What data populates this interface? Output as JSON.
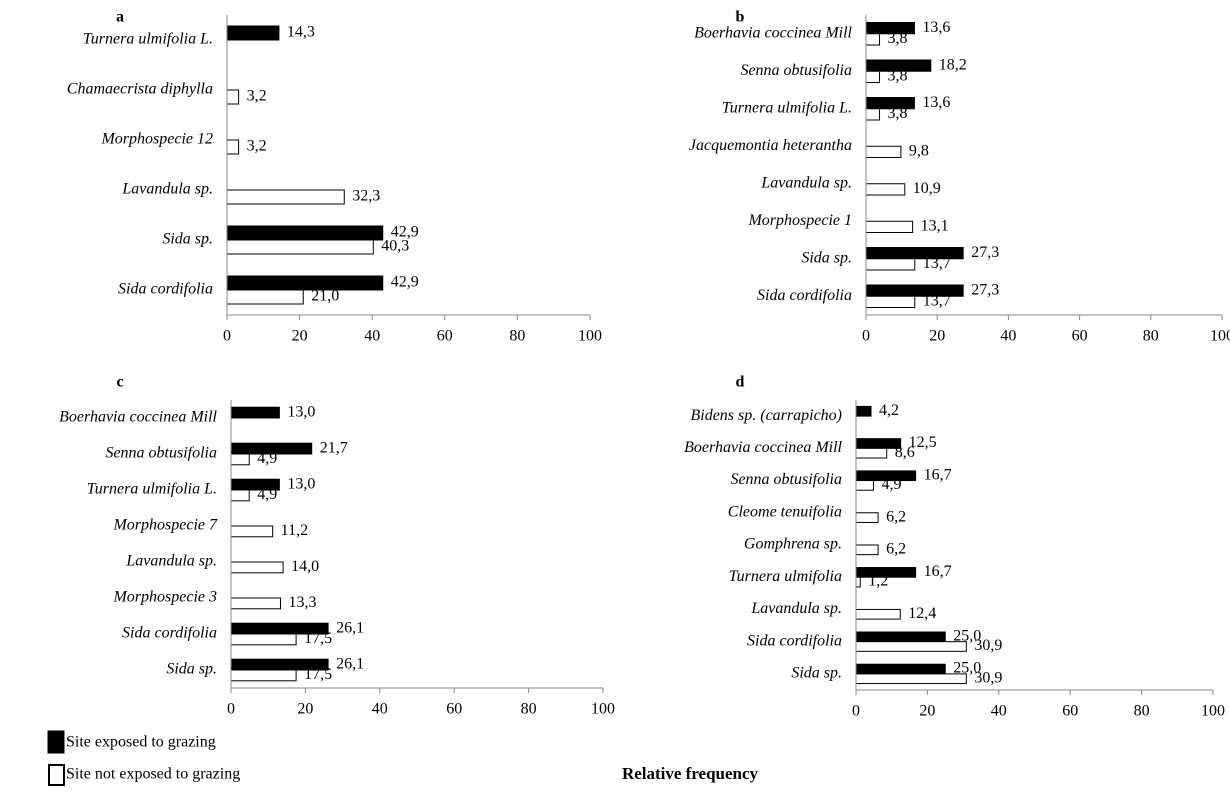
{
  "xlabel": "Relative frequency",
  "chart_data": [
    {
      "type": "bar",
      "orientation": "horizontal",
      "title": "a",
      "categories": [
        "Turnera ulmifolia L.",
        "Chamaecrista diphylla",
        "Morphospecie 12",
        "Lavandula sp.",
        "Sida sp.",
        "Sida cordifolia"
      ],
      "series": [
        {
          "name": "Site exposed to grazing",
          "color": "#000000",
          "values": [
            14.3,
            null,
            null,
            null,
            42.9,
            42.9
          ],
          "value_labels": [
            "14,3",
            null,
            null,
            null,
            "42,9",
            "42,9"
          ]
        },
        {
          "name": "Site not exposed to grazing",
          "color": "#ffffff",
          "values": [
            null,
            3.2,
            3.2,
            32.3,
            40.3,
            21.0
          ],
          "value_labels": [
            null,
            "3,2",
            "3,2",
            "32,3",
            "40,3",
            "21,0"
          ]
        }
      ],
      "xlim": [
        0,
        100
      ],
      "xticks": [
        0,
        20,
        40,
        60,
        80,
        100
      ]
    },
    {
      "type": "bar",
      "orientation": "horizontal",
      "title": "b",
      "categories": [
        "Boerhavia coccinea Mill",
        "Senna obtusifolia",
        "Turnera ulmifolia L.",
        "Jacquemontia heterantha",
        "Lavandula sp.",
        "Morphospecie 1",
        "Sida sp.",
        "Sida cordifolia"
      ],
      "series": [
        {
          "name": "Site exposed to grazing",
          "color": "#000000",
          "values": [
            13.6,
            18.2,
            13.6,
            null,
            null,
            null,
            27.3,
            27.3
          ],
          "value_labels": [
            "13,6",
            "18,2",
            "13,6",
            null,
            null,
            null,
            "27,3",
            "27,3"
          ]
        },
        {
          "name": "Site not exposed to grazing",
          "color": "#ffffff",
          "values": [
            3.8,
            3.8,
            3.8,
            9.8,
            10.9,
            13.1,
            13.7,
            13.7
          ],
          "value_labels": [
            "3,8",
            "3,8",
            "3,8",
            "9,8",
            "10,9",
            "13,1",
            "13,7",
            "13,7"
          ]
        }
      ],
      "xlim": [
        0,
        100
      ],
      "xticks": [
        0,
        20,
        40,
        60,
        80,
        100
      ]
    },
    {
      "type": "bar",
      "orientation": "horizontal",
      "title": "c",
      "categories": [
        "Boerhavia coccinea Mill",
        "Senna obtusifolia",
        "Turnera ulmifolia L.",
        "Morphospecie 7",
        "Lavandula sp.",
        "Morphospecie 3",
        "Sida cordifolia",
        "Sida sp."
      ],
      "series": [
        {
          "name": "Site exposed to grazing",
          "color": "#000000",
          "values": [
            13.0,
            21.7,
            13.0,
            null,
            null,
            null,
            26.1,
            26.1
          ],
          "value_labels": [
            "13,0",
            "21,7",
            "13,0",
            null,
            null,
            null,
            "26,1",
            "26,1"
          ]
        },
        {
          "name": "Site not exposed to grazing",
          "color": "#ffffff",
          "values": [
            null,
            4.9,
            4.9,
            11.2,
            14.0,
            13.3,
            17.5,
            17.5
          ],
          "value_labels": [
            null,
            "4,9",
            "4,9",
            "11,2",
            "14,0",
            "13,3",
            "17,5",
            "17,5"
          ]
        }
      ],
      "xlim": [
        0,
        100
      ],
      "xticks": [
        0,
        20,
        40,
        60,
        80,
        100
      ]
    },
    {
      "type": "bar",
      "orientation": "horizontal",
      "title": "d",
      "categories": [
        "Bidens sp. (carrapicho)",
        "Boerhavia coccinea Mill",
        "Senna obtusifolia",
        "Cleome tenuifolia",
        "Gomphrena sp.",
        "Turnera ulmifolia",
        "Lavandula sp.",
        "Sida cordifolia",
        "Sida sp."
      ],
      "series": [
        {
          "name": "Site exposed to grazing",
          "color": "#000000",
          "values": [
            4.2,
            12.5,
            16.7,
            null,
            null,
            16.7,
            null,
            25.0,
            25.0
          ],
          "value_labels": [
            "4,2",
            "12,5",
            "16,7",
            null,
            null,
            "16,7",
            null,
            "25,0",
            "25,0"
          ]
        },
        {
          "name": "Site not exposed to grazing",
          "color": "#ffffff",
          "values": [
            null,
            8.6,
            4.9,
            6.2,
            6.2,
            1.2,
            12.4,
            30.9,
            30.9
          ],
          "value_labels": [
            null,
            "8,6",
            "4,9",
            "6,2",
            "6,2",
            "1,2",
            "12,4",
            "30,9",
            "30,9"
          ]
        }
      ],
      "xlim": [
        0,
        100
      ],
      "xticks": [
        0,
        20,
        40,
        60,
        80,
        100
      ]
    }
  ]
}
